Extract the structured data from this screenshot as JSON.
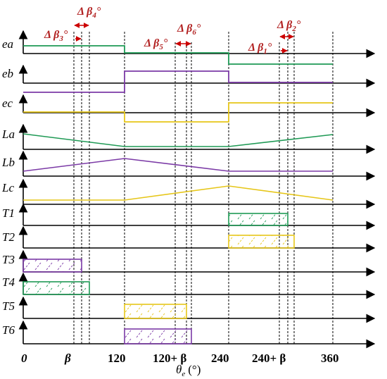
{
  "rows": [
    {
      "label": "ea"
    },
    {
      "label": "eb"
    },
    {
      "label": "ec"
    },
    {
      "label": "La"
    },
    {
      "label": "Lb"
    },
    {
      "label": "Lc"
    },
    {
      "label": "T1"
    },
    {
      "label": "T2"
    },
    {
      "label": "T3"
    },
    {
      "label": "T4"
    },
    {
      "label": "T5"
    },
    {
      "label": "T6"
    }
  ],
  "x_ticks": {
    "t0": "0",
    "t_beta": "β",
    "t120": "120",
    "t120b": "120+ β",
    "t240": "240",
    "t240b": "240+ β",
    "t360": "360"
  },
  "x_axis_label": "θ",
  "x_axis_sub": "e",
  "x_axis_unit": "(°)",
  "deltas": [
    {
      "main": "Δ β",
      "sub": "1",
      "deg": "°"
    },
    {
      "main": "Δ β",
      "sub": "2",
      "deg": "°"
    },
    {
      "main": "Δ β",
      "sub": "3",
      "deg": "°"
    },
    {
      "main": "Δ β",
      "sub": "4",
      "deg": "°"
    },
    {
      "main": "Δ β",
      "sub": "5",
      "deg": "°"
    },
    {
      "main": "Δ β",
      "sub": "6",
      "deg": "°"
    }
  ],
  "colors": {
    "phase_a": "#1f9a55",
    "phase_b": "#7b3aa6",
    "phase_c": "#e6c619",
    "delta_text": "#b22222",
    "delta_arrow": "#cc0000"
  }
}
